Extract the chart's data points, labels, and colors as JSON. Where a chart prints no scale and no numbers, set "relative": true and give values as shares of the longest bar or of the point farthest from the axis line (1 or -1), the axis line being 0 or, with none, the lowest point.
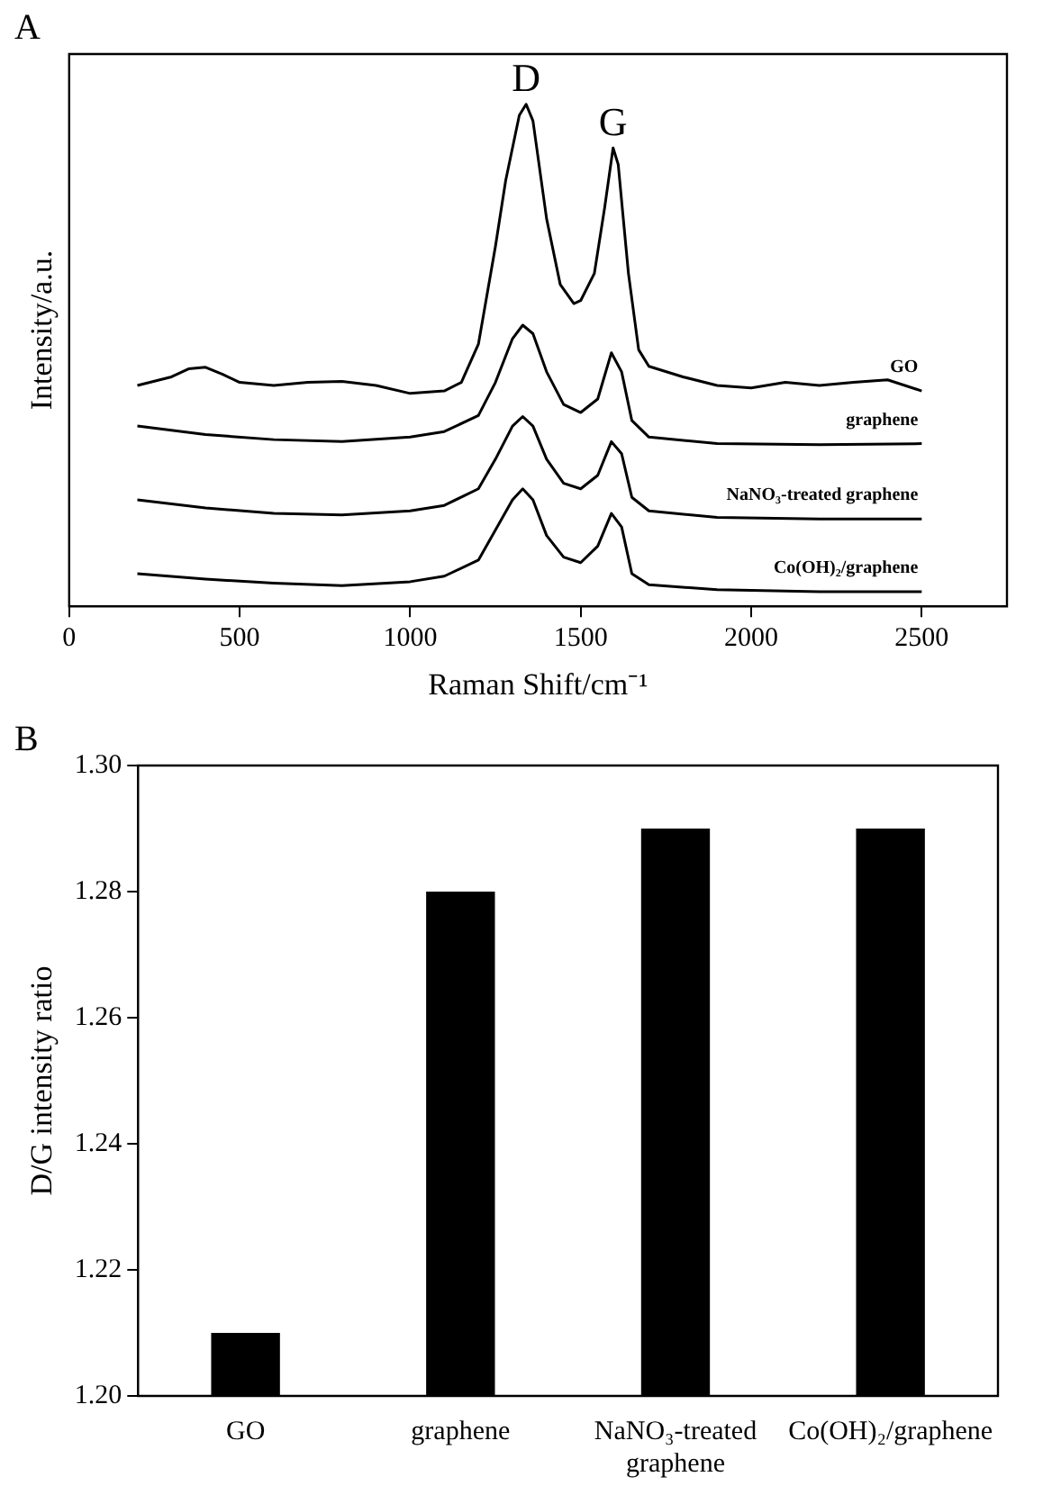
{
  "chart_data": [
    {
      "type": "line",
      "xlabel": "Raman Shift/cm⁻¹",
      "ylabel": "Intensity/a.u.",
      "relative": true,
      "xlim": [
        0,
        2750
      ],
      "xticks": [
        0,
        500,
        1000,
        1500,
        2000,
        2500
      ],
      "annotations": [
        "A",
        {
          "text": "D",
          "x": 1340,
          "y": 1.0
        },
        {
          "text": "G",
          "x": 1595,
          "y": 0.913
        }
      ],
      "series": [
        {
          "name": "GO",
          "color": "#000000",
          "x": [
            200,
            300,
            350,
            400,
            450,
            500,
            600,
            700,
            800,
            900,
            1000,
            1100,
            1150,
            1200,
            1250,
            1280,
            1320,
            1340,
            1360,
            1400,
            1440,
            1480,
            1500,
            1540,
            1570,
            1595,
            1610,
            1640,
            1670,
            1700,
            1800,
            1900,
            2000,
            2100,
            2200,
            2300,
            2400,
            2500
          ],
          "values": [
            0.44,
            0.457,
            0.473,
            0.476,
            0.462,
            0.446,
            0.44,
            0.446,
            0.448,
            0.44,
            0.424,
            0.429,
            0.446,
            0.522,
            0.717,
            0.848,
            0.978,
            1.0,
            0.967,
            0.772,
            0.641,
            0.603,
            0.609,
            0.663,
            0.793,
            0.913,
            0.88,
            0.663,
            0.511,
            0.478,
            0.457,
            0.44,
            0.435,
            0.446,
            0.44,
            0.446,
            0.451,
            0.429
          ]
        },
        {
          "name": "graphene",
          "color": "#000000",
          "x": [
            200,
            400,
            600,
            800,
            1000,
            1100,
            1200,
            1250,
            1300,
            1330,
            1360,
            1400,
            1450,
            1500,
            1550,
            1590,
            1620,
            1650,
            1700,
            1900,
            2200,
            2500
          ],
          "values": [
            0.359,
            0.342,
            0.332,
            0.328,
            0.337,
            0.348,
            0.38,
            0.446,
            0.533,
            0.56,
            0.543,
            0.467,
            0.402,
            0.386,
            0.413,
            0.505,
            0.467,
            0.37,
            0.337,
            0.324,
            0.322,
            0.324
          ]
        },
        {
          "name": "NaNO₃-treated graphene",
          "color": "#000000",
          "x": [
            200,
            400,
            600,
            800,
            1000,
            1100,
            1200,
            1250,
            1300,
            1330,
            1360,
            1400,
            1450,
            1500,
            1550,
            1590,
            1620,
            1650,
            1700,
            1900,
            2200,
            2500
          ],
          "values": [
            0.212,
            0.196,
            0.185,
            0.182,
            0.19,
            0.201,
            0.234,
            0.293,
            0.359,
            0.378,
            0.359,
            0.293,
            0.245,
            0.234,
            0.261,
            0.328,
            0.304,
            0.217,
            0.19,
            0.177,
            0.174,
            0.174
          ]
        },
        {
          "name": "Co(OH)₂/graphene",
          "color": "#000000",
          "x": [
            200,
            400,
            600,
            800,
            1000,
            1100,
            1200,
            1250,
            1300,
            1330,
            1360,
            1400,
            1450,
            1500,
            1550,
            1590,
            1620,
            1650,
            1700,
            1900,
            2200,
            2500
          ],
          "values": [
            0.065,
            0.054,
            0.046,
            0.041,
            0.049,
            0.06,
            0.092,
            0.152,
            0.212,
            0.234,
            0.212,
            0.141,
            0.098,
            0.087,
            0.12,
            0.185,
            0.158,
            0.065,
            0.043,
            0.033,
            0.029,
            0.029
          ]
        }
      ]
    },
    {
      "type": "bar",
      "ylabel": "D/G intensity ratio",
      "annotations": [
        "B"
      ],
      "categories": [
        "GO",
        "graphene",
        "NaNO₃-treated graphene",
        "Co(OH)₂/graphene"
      ],
      "values": [
        1.21,
        1.28,
        1.29,
        1.29
      ],
      "color": "#000000",
      "ylim": [
        1.2,
        1.3
      ],
      "yticks": [
        {
          "value": 1.2,
          "label": "1.20"
        },
        {
          "value": 1.22,
          "label": "1.22"
        },
        {
          "value": 1.24,
          "label": "1.24"
        },
        {
          "value": 1.26,
          "label": "1.26"
        },
        {
          "value": 1.28,
          "label": "1.28"
        },
        {
          "value": 1.3,
          "label": "1.30"
        }
      ]
    }
  ]
}
